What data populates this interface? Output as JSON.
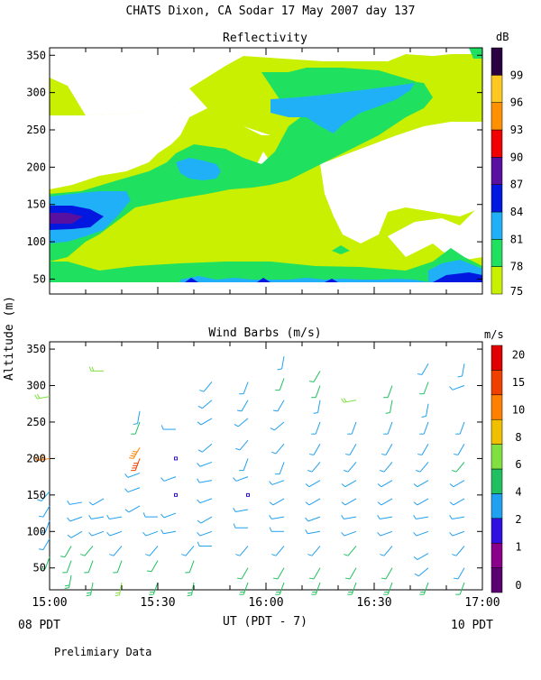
{
  "title": "CHATS Dixon, CA  Sodar  17 May 2007  day 137",
  "footer_note": "Prelimiary Data",
  "y_axis_label": "Altitude (m)",
  "x_axis_label": "UT  (PDT - 7)",
  "x_left_sublabel": "08 PDT",
  "x_right_sublabel": "10 PDT",
  "chart_data": [
    {
      "type": "heatmap",
      "title": "Reflectivity",
      "colorbar_unit": "dB",
      "x_ticks": [
        "15:00",
        "15:30",
        "16:00",
        "16:30",
        "17:00"
      ],
      "y_ticks": [
        50,
        100,
        150,
        200,
        250,
        300,
        350
      ],
      "ylim": [
        30,
        360
      ],
      "xlim": [
        "15:00",
        "17:00"
      ],
      "levels": [
        75,
        78,
        81,
        84,
        87,
        90,
        93,
        96,
        99
      ],
      "colors": [
        "#c8f000",
        "#20e060",
        "#20b0f8",
        "#0018e0",
        "#5810a0",
        "#f00000",
        "#ff9000",
        "#ffc820",
        "#2a0040"
      ],
      "regions": [
        {
          "level": 75,
          "desc": "background from 40 m to 350 m"
        },
        {
          "level": 78,
          "desc": "main band and upper lobe"
        },
        {
          "level": 81,
          "desc": "core near 115-145 m at 15:00 and upper lobe near 260-300 m"
        },
        {
          "level": 84,
          "desc": "core near 110-130 m at 15:00; surface band near 40-50 m"
        },
        {
          "level": 87,
          "desc": "core near 118-125 m at 15:00"
        }
      ]
    },
    {
      "type": "scatter",
      "title": "Wind Barbs (m/s)",
      "colorbar_unit": "m/s",
      "x_ticks": [
        "15:00",
        "15:30",
        "16:00",
        "16:30",
        "17:00"
      ],
      "y_ticks": [
        50,
        100,
        150,
        200,
        250,
        300,
        350
      ],
      "ylim": [
        20,
        360
      ],
      "speed_ticks": [
        0,
        1,
        2,
        4,
        6,
        8,
        10,
        15,
        20
      ],
      "speed_colors": [
        "#5a0070",
        "#8a008a",
        "#3010e0",
        "#20a0f0",
        "#20c060",
        "#80e040",
        "#f0c000",
        "#ff8000",
        "#f04000",
        "#e00000"
      ],
      "barbs": [
        {
          "t": "15:00",
          "alt": [
            65,
            90,
            115,
            135,
            155,
            200,
            285
          ],
          "speed": [
            4,
            3,
            3,
            3,
            3,
            12,
            7
          ],
          "dir": [
            200,
            210,
            200,
            210,
            220,
            260,
            260
          ]
        },
        {
          "t": "15:06",
          "alt": [
            40,
            60,
            80
          ],
          "speed": [
            5,
            4,
            4
          ],
          "dir": [
            190,
            200,
            210
          ]
        },
        {
          "t": "15:09",
          "alt": [
            100,
            120,
            140
          ],
          "speed": [
            2,
            3,
            3
          ],
          "dir": [
            240,
            250,
            260
          ]
        },
        {
          "t": "15:12",
          "alt": [
            30,
            60,
            80
          ],
          "speed": [
            5,
            4,
            4
          ],
          "dir": [
            190,
            200,
            220
          ]
        },
        {
          "t": "15:15",
          "alt": [
            100,
            120,
            145,
            320
          ],
          "speed": [
            2,
            2,
            3,
            6
          ],
          "dir": [
            250,
            260,
            240,
            270
          ]
        },
        {
          "t": "15:20",
          "alt": [
            30,
            60,
            80,
            100,
            120
          ],
          "speed": [
            6,
            4,
            3,
            2,
            2
          ],
          "dir": [
            190,
            200,
            220,
            250,
            260
          ]
        },
        {
          "t": "15:25",
          "alt": [
            135,
            160,
            180,
            200,
            215,
            250,
            265
          ],
          "speed": [
            2,
            2,
            2,
            15,
            12,
            4,
            3
          ],
          "dir": [
            240,
            250,
            250,
            200,
            210,
            200,
            190
          ]
        },
        {
          "t": "15:30",
          "alt": [
            30,
            60,
            80,
            100,
            120
          ],
          "speed": [
            5,
            4,
            3,
            2,
            2
          ],
          "dir": [
            200,
            210,
            220,
            250,
            270
          ]
        },
        {
          "t": "15:35",
          "alt": [
            100,
            125,
            150,
            175,
            200,
            240
          ],
          "speed": [
            2,
            2,
            1,
            2,
            1,
            2
          ],
          "dir": [
            260,
            250,
            240,
            250,
            240,
            270
          ]
        },
        {
          "t": "15:40",
          "alt": [
            30,
            60,
            80
          ],
          "speed": [
            5,
            4,
            3
          ],
          "dir": [
            190,
            200,
            220
          ]
        },
        {
          "t": "15:45",
          "alt": [
            80,
            100,
            120,
            145,
            170,
            195,
            220,
            255,
            280,
            305
          ],
          "speed": [
            2,
            2,
            2,
            2,
            2,
            2,
            2,
            2,
            2,
            2
          ],
          "dir": [
            270,
            250,
            240,
            250,
            260,
            250,
            230,
            240,
            230,
            220
          ]
        },
        {
          "t": "15:55",
          "alt": [
            30,
            50,
            80,
            105,
            130,
            150,
            175,
            200,
            225,
            255,
            280,
            305
          ],
          "speed": [
            5,
            4,
            3,
            2,
            2,
            1,
            2,
            2,
            2,
            3,
            3,
            3
          ],
          "dir": [
            200,
            210,
            220,
            270,
            260,
            240,
            250,
            200,
            220,
            230,
            210,
            200
          ]
        },
        {
          "t": "16:05",
          "alt": [
            30,
            50,
            80,
            100,
            120,
            145,
            170,
            195,
            220,
            250,
            280,
            310,
            340
          ],
          "speed": [
            5,
            4,
            3,
            2,
            2,
            2,
            2,
            2,
            2,
            2,
            2,
            4,
            3
          ],
          "dir": [
            200,
            210,
            220,
            270,
            260,
            240,
            250,
            200,
            220,
            230,
            210,
            200,
            190
          ]
        },
        {
          "t": "16:15",
          "alt": [
            30,
            50,
            80,
            100,
            120,
            145,
            170,
            195,
            220,
            250,
            280,
            300,
            320
          ],
          "speed": [
            5,
            4,
            3,
            2,
            2,
            2,
            2,
            2,
            2,
            2,
            3,
            4,
            4
          ],
          "dir": [
            200,
            210,
            220,
            260,
            250,
            240,
            240,
            220,
            210,
            200,
            190,
            200,
            210
          ]
        },
        {
          "t": "16:25",
          "alt": [
            30,
            50,
            80,
            100,
            120,
            145,
            170,
            195,
            220,
            250,
            280
          ],
          "speed": [
            5,
            4,
            4,
            2,
            2,
            2,
            2,
            2,
            2,
            3,
            6
          ],
          "dir": [
            200,
            210,
            220,
            250,
            260,
            240,
            240,
            220,
            210,
            200,
            260
          ]
        },
        {
          "t": "16:35",
          "alt": [
            30,
            50,
            80,
            100,
            120,
            145,
            170,
            195,
            220,
            250,
            280,
            300
          ],
          "speed": [
            5,
            4,
            3,
            2,
            2,
            3,
            3,
            3,
            3,
            3,
            4,
            4
          ],
          "dir": [
            200,
            210,
            220,
            250,
            260,
            240,
            240,
            220,
            210,
            200,
            190,
            200
          ]
        },
        {
          "t": "16:45",
          "alt": [
            30,
            50,
            70,
            100,
            120,
            145,
            170,
            195,
            220,
            250,
            275,
            305,
            330
          ],
          "speed": [
            5,
            3,
            3,
            2,
            2,
            3,
            3,
            3,
            3,
            3,
            3,
            4,
            3
          ],
          "dir": [
            200,
            230,
            240,
            250,
            260,
            240,
            240,
            220,
            210,
            200,
            190,
            200,
            210
          ]
        },
        {
          "t": "16:55",
          "alt": [
            30,
            50,
            80,
            100,
            120,
            145,
            170,
            195,
            220,
            250,
            300,
            330
          ],
          "speed": [
            4,
            3,
            3,
            2,
            2,
            3,
            3,
            4,
            3,
            3,
            2,
            3
          ],
          "dir": [
            200,
            210,
            220,
            250,
            260,
            240,
            240,
            220,
            210,
            200,
            250,
            190
          ]
        }
      ]
    }
  ]
}
